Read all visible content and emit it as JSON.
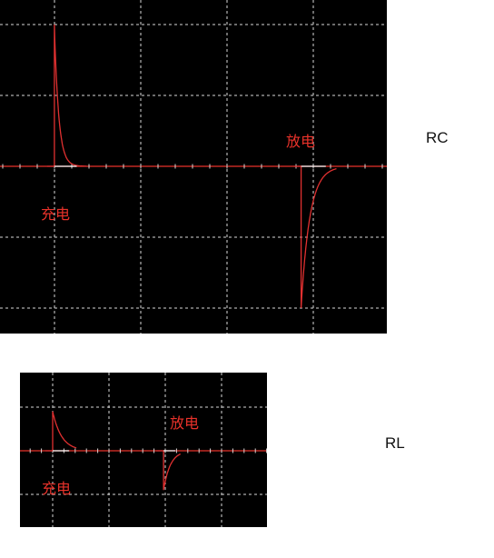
{
  "colors": {
    "screen": "#000000",
    "grid": "#d8d8d8",
    "axis": "#e8322a",
    "trace": "#e03030",
    "label": "#e8322a"
  },
  "chart_data": [
    {
      "type": "line",
      "side_label": "RC",
      "annotations": {
        "charge": "充电",
        "discharge": "放电"
      },
      "grid_divisions": {
        "x": 4.4,
        "y": 4.7
      },
      "series": [
        {
          "pulse": "charge",
          "polarity": 1,
          "start": 0.63,
          "peak": 2.0,
          "tau": 0.05,
          "end": 1.0
        },
        {
          "pulse": "discharge",
          "polarity": -1,
          "start": 3.49,
          "peak": 2.0,
          "tau": 0.1,
          "end": 3.9
        }
      ]
    },
    {
      "type": "line",
      "side_label": "RL",
      "annotations": {
        "charge": "充电",
        "discharge": "放电"
      },
      "grid_divisions": {
        "x": 4.35,
        "y": 3.4
      },
      "series": [
        {
          "pulse": "charge",
          "polarity": 1,
          "start": 0.58,
          "peak": 0.9,
          "tau": 0.16,
          "end": 1.0
        },
        {
          "pulse": "discharge",
          "polarity": -1,
          "start": 2.55,
          "peak": 0.9,
          "tau": 0.12,
          "end": 2.85
        }
      ]
    }
  ]
}
